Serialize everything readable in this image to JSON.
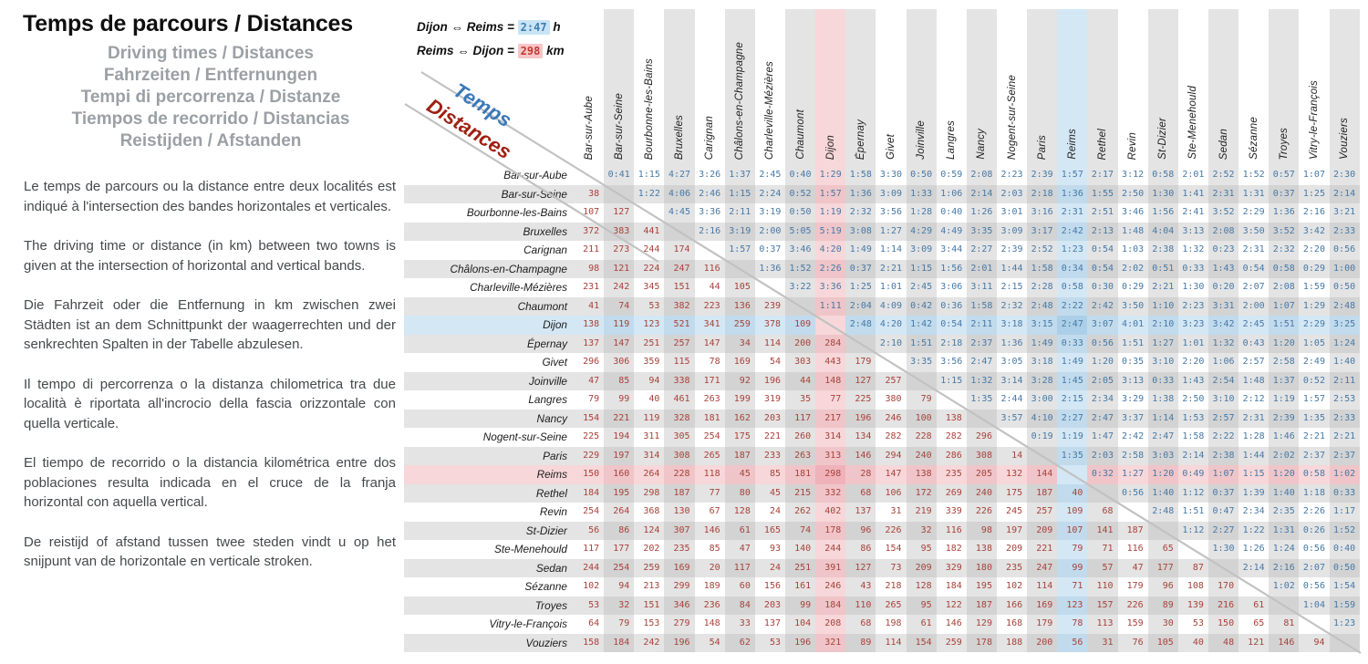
{
  "title": "Temps de parcours / Distances",
  "subtitles": [
    "Driving times / Distances",
    "Fahrzeiten / Entfernungen",
    "Tempi di percorrenza / Distanze",
    "Tiempos de recorrido / Distancias",
    "Reistijden / Afstanden"
  ],
  "paragraphs": [
    "Le temps de parcours ou la distance entre deux localités est indiqué à l'intersection des bandes horizontales et verticales.",
    "The driving time or distance (in km) between two towns is given at the intersection of horizontal and vertical bands.",
    "Die Fahrzeit oder die Entfernung in km zwischen zwei Städten ist an dem Schnittpunkt der waagerrechten und der senkrechten Spalten in der Tabelle abzulesen.",
    "Il tempo di percorrenza o la distanza chilometrica tra due località è riportata all'incrocio della fascia orizzontale con quella verticale.",
    "El tiempo de recorrido o la distancia kilométrica entre dos poblaciones resulta indicada en el cruce de la franja horizontal con aquella vertical.",
    "De reistijd of afstand tussen twee steden vindt u op het snijpunt van de horizontale en verticale stroken."
  ],
  "legend": {
    "time_prefix": "Dijon ⇔ Reims = ",
    "time_value": "2:47",
    "time_unit": " h",
    "dist_prefix": "Reims ⇔ Dijon = ",
    "dist_value": "298",
    "dist_unit": " km"
  },
  "diagonal_labels": {
    "time": "Temps",
    "distance": "Distances"
  },
  "colors": {
    "band1": "#e4e4e4",
    "band2": "#d3d3d3",
    "pink1": "#f7d7d9",
    "pink2": "#efc5c9",
    "blue1": "#d4e7f5",
    "blue2": "#c1dbed",
    "hl_time_bg": "#accfe9",
    "hl_dist_bg": "#f0b2ba",
    "time_text": "#4779a6",
    "dist_text": "#a8423a",
    "diag_line": "#c2c2c2"
  },
  "chart_data": {
    "type": "table",
    "upper_triangle": "driving times (h:mm)",
    "lower_triangle": "distances (km)",
    "highlights": {
      "dijon": 8,
      "reims": 16
    },
    "cities": [
      "Bar-sur-Aube",
      "Bar-sur-Seine",
      "Bourbonne-les-Bains",
      "Bruxelles",
      "Carignan",
      "Châlons-en-Champagne",
      "Charleville-Mézières",
      "Chaumont",
      "Dijon",
      "Épernay",
      "Givet",
      "Joinville",
      "Langres",
      "Nancy",
      "Nogent-sur-Seine",
      "Paris",
      "Reims",
      "Rethel",
      "Revin",
      "St-Dizier",
      "Ste-Menehould",
      "Sedan",
      "Sézanne",
      "Troyes",
      "Vitry-le-François",
      "Vouziers"
    ],
    "matrix": [
      [
        null,
        "0:41",
        "1:15",
        "4:27",
        "3:26",
        "1:37",
        "2:45",
        "0:40",
        "1:29",
        "1:58",
        "3:30",
        "0:50",
        "0:59",
        "2:08",
        "2:23",
        "2:39",
        "1:57",
        "2:17",
        "3:12",
        "0:58",
        "2:01",
        "2:52",
        "1:52",
        "0:57",
        "1:07",
        "2:30"
      ],
      [
        38,
        null,
        "1:22",
        "4:06",
        "2:46",
        "1:15",
        "2:24",
        "0:52",
        "1:57",
        "1:36",
        "3:09",
        "1:33",
        "1:06",
        "2:14",
        "2:03",
        "2:18",
        "1:36",
        "1:55",
        "2:50",
        "1:30",
        "1:41",
        "2:31",
        "1:31",
        "0:37",
        "1:25",
        "2:14"
      ],
      [
        107,
        127,
        null,
        "4:45",
        "3:36",
        "2:11",
        "3:19",
        "0:50",
        "1:19",
        "2:32",
        "3:56",
        "1:28",
        "0:40",
        "1:26",
        "3:01",
        "3:16",
        "2:31",
        "2:51",
        "3:46",
        "1:56",
        "2:41",
        "3:52",
        "2:29",
        "1:36",
        "2:16",
        "3:21"
      ],
      [
        372,
        383,
        441,
        null,
        "2:16",
        "3:19",
        "2:00",
        "5:05",
        "5:19",
        "3:08",
        "1:27",
        "4:29",
        "4:49",
        "3:35",
        "3:09",
        "3:17",
        "2:42",
        "2:13",
        "1:48",
        "4:04",
        "3:13",
        "2:08",
        "3:50",
        "3:52",
        "3:42",
        "2:33"
      ],
      [
        211,
        273,
        244,
        174,
        null,
        "1:57",
        "0:37",
        "3:46",
        "4:20",
        "1:49",
        "1:14",
        "3:09",
        "3:44",
        "2:27",
        "2:39",
        "2:52",
        "1:23",
        "0:54",
        "1:03",
        "2:38",
        "1:32",
        "0:23",
        "2:31",
        "2:32",
        "2:20",
        "0:56"
      ],
      [
        98,
        121,
        224,
        247,
        116,
        null,
        "1:36",
        "1:52",
        "2:26",
        "0:37",
        "2:21",
        "1:15",
        "1:56",
        "2:01",
        "1:44",
        "1:58",
        "0:34",
        "0:54",
        "2:02",
        "0:51",
        "0:33",
        "1:43",
        "0:54",
        "0:58",
        "0:29",
        "1:00"
      ],
      [
        231,
        242,
        345,
        151,
        44,
        105,
        null,
        "3:22",
        "3:36",
        "1:25",
        "1:01",
        "2:45",
        "3:06",
        "3:11",
        "2:15",
        "2:28",
        "0:58",
        "0:30",
        "0:29",
        "2:21",
        "1:30",
        "0:20",
        "2:07",
        "2:08",
        "1:59",
        "0:50"
      ],
      [
        41,
        74,
        53,
        382,
        223,
        136,
        239,
        null,
        "1:11",
        "2:04",
        "4:09",
        "0:42",
        "0:36",
        "1:58",
        "2:32",
        "2:48",
        "2:22",
        "2:42",
        "3:50",
        "1:10",
        "2:23",
        "3:31",
        "2:00",
        "1:07",
        "1:29",
        "2:48"
      ],
      [
        138,
        119,
        123,
        521,
        341,
        259,
        378,
        109,
        null,
        "2:48",
        "4:20",
        "1:42",
        "0:54",
        "2:11",
        "3:18",
        "3:15",
        "2:47",
        "3:07",
        "4:01",
        "2:10",
        "3:23",
        "3:42",
        "2:45",
        "1:51",
        "2:29",
        "3:25"
      ],
      [
        137,
        147,
        251,
        257,
        147,
        34,
        114,
        200,
        284,
        null,
        "2:10",
        "1:51",
        "2:18",
        "2:37",
        "1:36",
        "1:49",
        "0:33",
        "0:56",
        "1:51",
        "1:27",
        "1:01",
        "1:32",
        "0:43",
        "1:20",
        "1:05",
        "1:24"
      ],
      [
        296,
        306,
        359,
        115,
        78,
        169,
        54,
        303,
        443,
        179,
        null,
        "3:35",
        "3:56",
        "2:47",
        "3:05",
        "3:18",
        "1:49",
        "1:20",
        "0:35",
        "3:10",
        "2:20",
        "1:06",
        "2:57",
        "2:58",
        "2:49",
        "1:40"
      ],
      [
        47,
        85,
        94,
        338,
        171,
        92,
        196,
        44,
        148,
        127,
        257,
        null,
        "1:15",
        "1:32",
        "3:14",
        "3:28",
        "1:45",
        "2:05",
        "3:13",
        "0:33",
        "1:43",
        "2:54",
        "1:48",
        "1:37",
        "0:52",
        "2:11"
      ],
      [
        79,
        99,
        40,
        461,
        263,
        199,
        319,
        35,
        77,
        225,
        380,
        79,
        null,
        "1:35",
        "2:44",
        "3:00",
        "2:15",
        "2:34",
        "3:29",
        "1:38",
        "2:50",
        "3:10",
        "2:12",
        "1:19",
        "1:57",
        "2:53"
      ],
      [
        154,
        221,
        119,
        328,
        181,
        162,
        203,
        117,
        217,
        196,
        246,
        100,
        138,
        null,
        "3:57",
        "4:10",
        "2:27",
        "2:47",
        "3:37",
        "1:14",
        "1:53",
        "2:57",
        "2:31",
        "2:39",
        "1:35",
        "2:33"
      ],
      [
        225,
        194,
        311,
        305,
        254,
        175,
        221,
        260,
        314,
        134,
        282,
        228,
        282,
        296,
        null,
        "0:19",
        "1:19",
        "1:47",
        "2:42",
        "2:47",
        "1:58",
        "2:22",
        "1:28",
        "1:46",
        "2:21",
        "2:21"
      ],
      [
        229,
        197,
        314,
        308,
        265,
        187,
        233,
        263,
        313,
        146,
        294,
        240,
        286,
        308,
        14,
        null,
        "1:35",
        "2:03",
        "2:58",
        "3:03",
        "2:14",
        "2:38",
        "1:44",
        "2:02",
        "2:37",
        "2:37"
      ],
      [
        150,
        160,
        264,
        228,
        118,
        45,
        85,
        181,
        298,
        28,
        147,
        138,
        235,
        205,
        132,
        144,
        null,
        "0:32",
        "1:27",
        "1:20",
        "0:49",
        "1:07",
        "1:15",
        "1:20",
        "0:58",
        "1:02"
      ],
      [
        184,
        195,
        298,
        187,
        77,
        80,
        45,
        215,
        332,
        68,
        106,
        172,
        269,
        240,
        175,
        187,
        40,
        null,
        "0:56",
        "1:40",
        "1:12",
        "0:37",
        "1:39",
        "1:40",
        "1:18",
        "0:33"
      ],
      [
        254,
        264,
        368,
        130,
        67,
        128,
        24,
        262,
        402,
        137,
        31,
        219,
        339,
        226,
        245,
        257,
        109,
        68,
        null,
        "2:48",
        "1:51",
        "0:47",
        "2:34",
        "2:35",
        "2:26",
        "1:17"
      ],
      [
        56,
        86,
        124,
        307,
        146,
        61,
        165,
        74,
        178,
        96,
        226,
        32,
        116,
        98,
        197,
        209,
        107,
        141,
        187,
        null,
        "1:12",
        "2:27",
        "1:22",
        "1:31",
        "0:26",
        "1:52"
      ],
      [
        117,
        177,
        202,
        235,
        85,
        47,
        93,
        140,
        244,
        86,
        154,
        95,
        182,
        138,
        209,
        221,
        79,
        71,
        116,
        65,
        null,
        "1:30",
        "1:26",
        "1:24",
        "0:56",
        "0:40"
      ],
      [
        244,
        254,
        259,
        169,
        20,
        117,
        24,
        251,
        391,
        127,
        73,
        209,
        329,
        180,
        235,
        247,
        99,
        57,
        47,
        177,
        87,
        null,
        "2:14",
        "2:16",
        "2:07",
        "0:50"
      ],
      [
        102,
        94,
        213,
        299,
        189,
        60,
        156,
        161,
        246,
        43,
        218,
        128,
        184,
        195,
        102,
        114,
        71,
        110,
        179,
        96,
        108,
        170,
        null,
        "1:02",
        "0:56",
        "1:54"
      ],
      [
        53,
        32,
        151,
        346,
        236,
        84,
        203,
        99,
        184,
        110,
        265,
        95,
        122,
        187,
        166,
        169,
        123,
        157,
        226,
        89,
        139,
        216,
        61,
        null,
        "1:04",
        "1:59"
      ],
      [
        64,
        79,
        153,
        279,
        148,
        33,
        137,
        104,
        208,
        68,
        198,
        61,
        146,
        129,
        168,
        179,
        78,
        113,
        159,
        30,
        53,
        150,
        65,
        81,
        null,
        "1:23"
      ],
      [
        158,
        184,
        242,
        196,
        54,
        62,
        53,
        196,
        321,
        89,
        114,
        154,
        259,
        178,
        188,
        200,
        56,
        31,
        76,
        105,
        40,
        48,
        121,
        146,
        94,
        null
      ]
    ]
  }
}
